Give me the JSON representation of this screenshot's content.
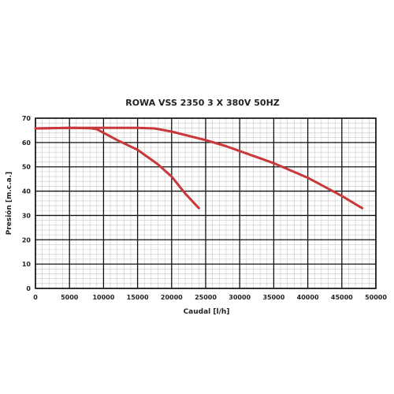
{
  "chart_data": {
    "type": "line",
    "title": "ROWA VSS 2350 3 X 380V 50HZ",
    "xlabel": "Caudal [l/h]",
    "ylabel": "Presión [m.c.a.]",
    "xlim": [
      0,
      50000
    ],
    "ylim": [
      0,
      70
    ],
    "x_ticks": [
      0,
      5000,
      10000,
      15000,
      20000,
      25000,
      30000,
      35000,
      40000,
      45000,
      50000
    ],
    "y_ticks": [
      0,
      10,
      20,
      30,
      40,
      50,
      60,
      70
    ],
    "x_tick_labels": [
      "0",
      "5000",
      "10000",
      "15000",
      "20000",
      "25000",
      "30000",
      "35000",
      "40000",
      "45000",
      "50000"
    ],
    "y_tick_labels": [
      "0",
      "10",
      "20",
      "30",
      "40",
      "50",
      "60",
      "70"
    ],
    "grid": true,
    "minor_grid": true,
    "legend": false,
    "series_color": "#c9383a",
    "series": [
      {
        "x": [
          0,
          5000,
          8000,
          9000,
          10000,
          12000,
          15000,
          18000,
          20000,
          22000,
          24000
        ],
        "y": [
          65.8,
          66.0,
          65.9,
          65.5,
          64,
          61,
          57,
          51,
          46,
          39,
          33
        ]
      },
      {
        "x": [
          0,
          5000,
          10000,
          15000,
          17500,
          20000,
          25000,
          28000,
          30000,
          35000,
          40000,
          45000,
          48000
        ],
        "y": [
          65.8,
          66.0,
          66.0,
          66.0,
          65.8,
          64.5,
          61,
          58.5,
          56.5,
          51.5,
          45.5,
          38,
          33
        ]
      }
    ]
  }
}
